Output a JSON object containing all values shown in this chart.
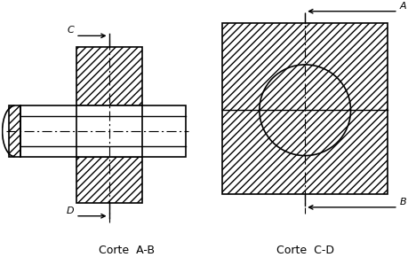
{
  "fig_width": 4.59,
  "fig_height": 2.99,
  "dpi": 100,
  "bg_color": "#ffffff",
  "line_color": "#000000",
  "label_A": "A",
  "label_B": "B",
  "label_C": "C",
  "label_D": "D",
  "title_left": "Corte  A-B",
  "title_right": "Corte  C-D",
  "font_size_labels": 8,
  "font_size_title": 9
}
